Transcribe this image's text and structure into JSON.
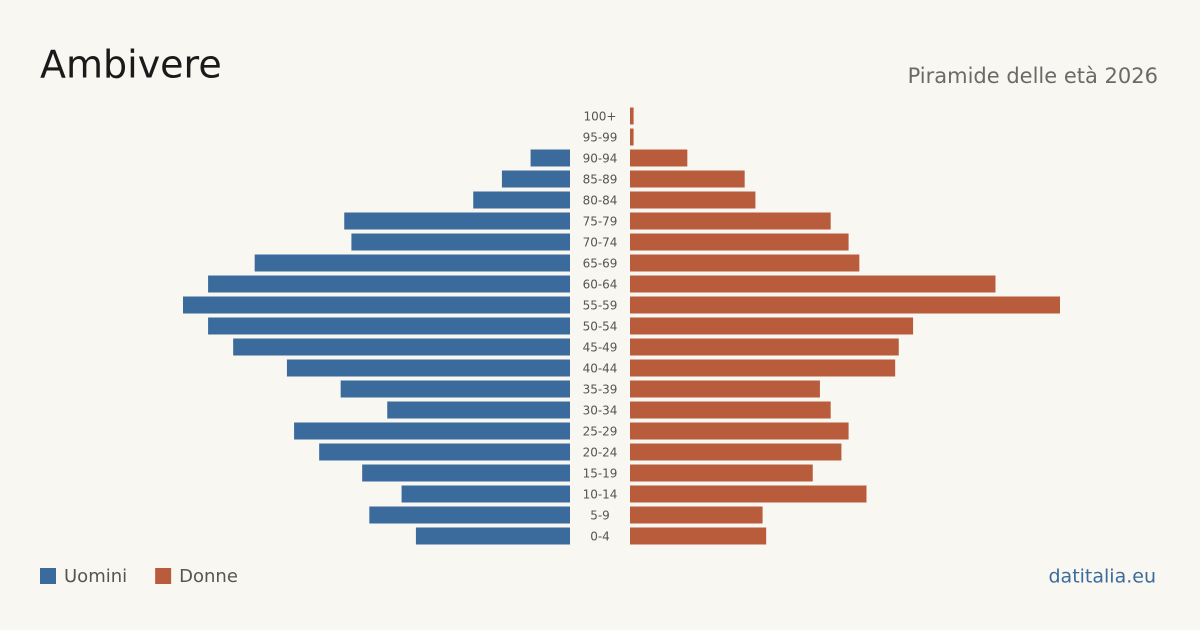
{
  "chart_data": {
    "type": "pyramid",
    "title": "Ambivere",
    "subtitle": "Piramide delle età 2026",
    "source": "datitalia.eu",
    "categories": [
      "100+",
      "95-99",
      "90-94",
      "85-89",
      "80-84",
      "75-79",
      "70-74",
      "65-69",
      "60-64",
      "55-59",
      "50-54",
      "45-49",
      "40-44",
      "35-39",
      "30-34",
      "25-29",
      "20-24",
      "15-19",
      "10-14",
      "5-9",
      "0-4"
    ],
    "series": [
      {
        "name": "Uomini",
        "color": "#3b6a9c",
        "values": [
          0,
          0,
          11,
          19,
          27,
          63,
          61,
          88,
          101,
          108,
          101,
          94,
          79,
          64,
          51,
          77,
          70,
          58,
          47,
          56,
          43
        ]
      },
      {
        "name": "Donne",
        "color": "#b95c3c",
        "values": [
          1,
          1,
          16,
          32,
          35,
          56,
          61,
          64,
          102,
          120,
          79,
          75,
          74,
          53,
          56,
          61,
          59,
          51,
          66,
          37,
          38
        ]
      }
    ]
  }
}
